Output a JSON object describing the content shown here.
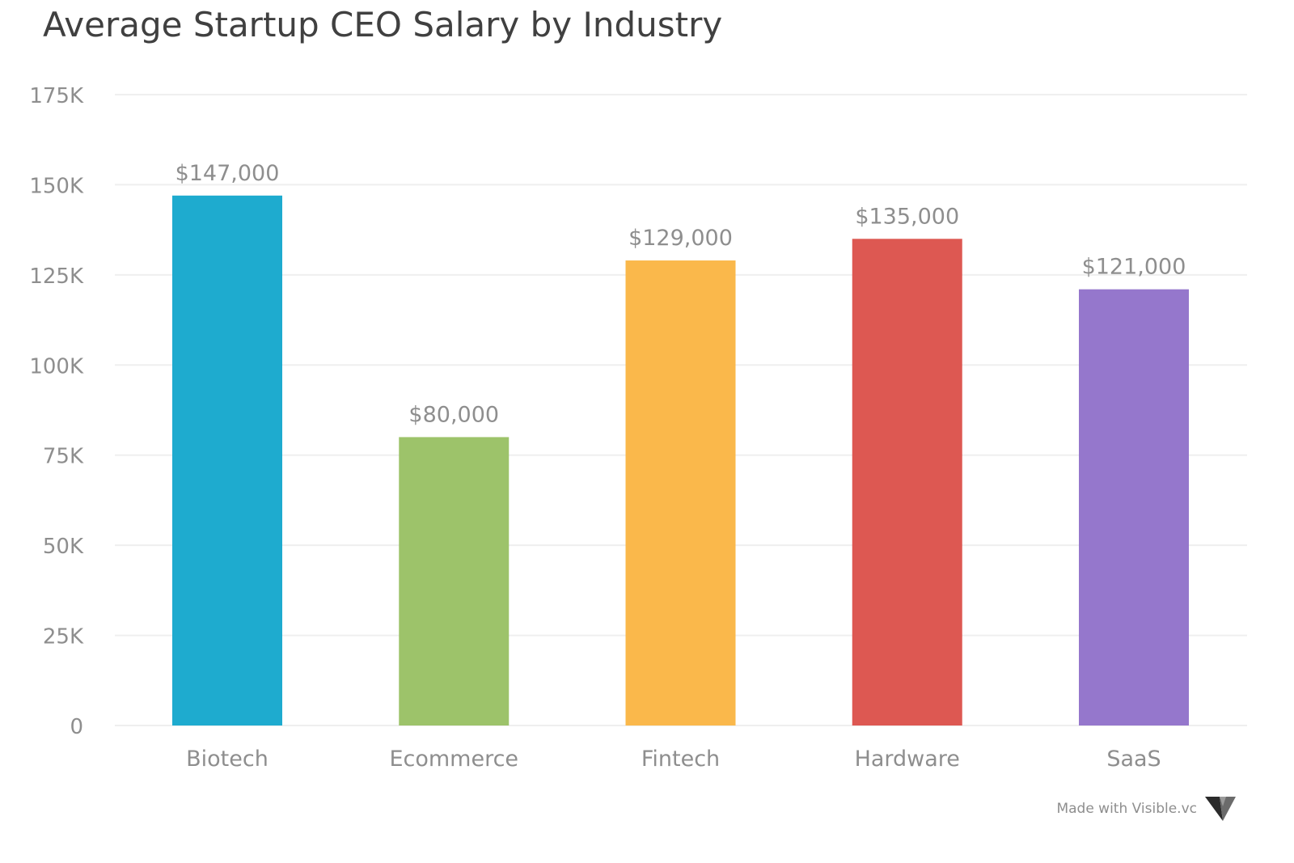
{
  "chart_data": {
    "type": "bar",
    "title": "Average Startup CEO Salary by Industry",
    "categories": [
      "Biotech",
      "Ecommerce",
      "Fintech",
      "Hardware",
      "SaaS"
    ],
    "values": [
      147000,
      80000,
      129000,
      135000,
      121000
    ],
    "data_labels": [
      "$147,000",
      "$80,000",
      "$129,000",
      "$135,000",
      "$121,000"
    ],
    "colors": [
      "#1eabcf",
      "#9dc36a",
      "#fab84b",
      "#dd5852",
      "#9577cc"
    ],
    "ylim": [
      0,
      175000
    ],
    "yticks": [
      0,
      25000,
      50000,
      75000,
      100000,
      125000,
      150000,
      175000
    ],
    "ytick_labels": [
      "0",
      "25K",
      "50K",
      "75K",
      "100K",
      "125K",
      "150K",
      "175K"
    ],
    "grid": true,
    "legend": "none"
  },
  "footer": {
    "text": "Made with Visible.vc",
    "icon": "visible-logo-icon"
  }
}
